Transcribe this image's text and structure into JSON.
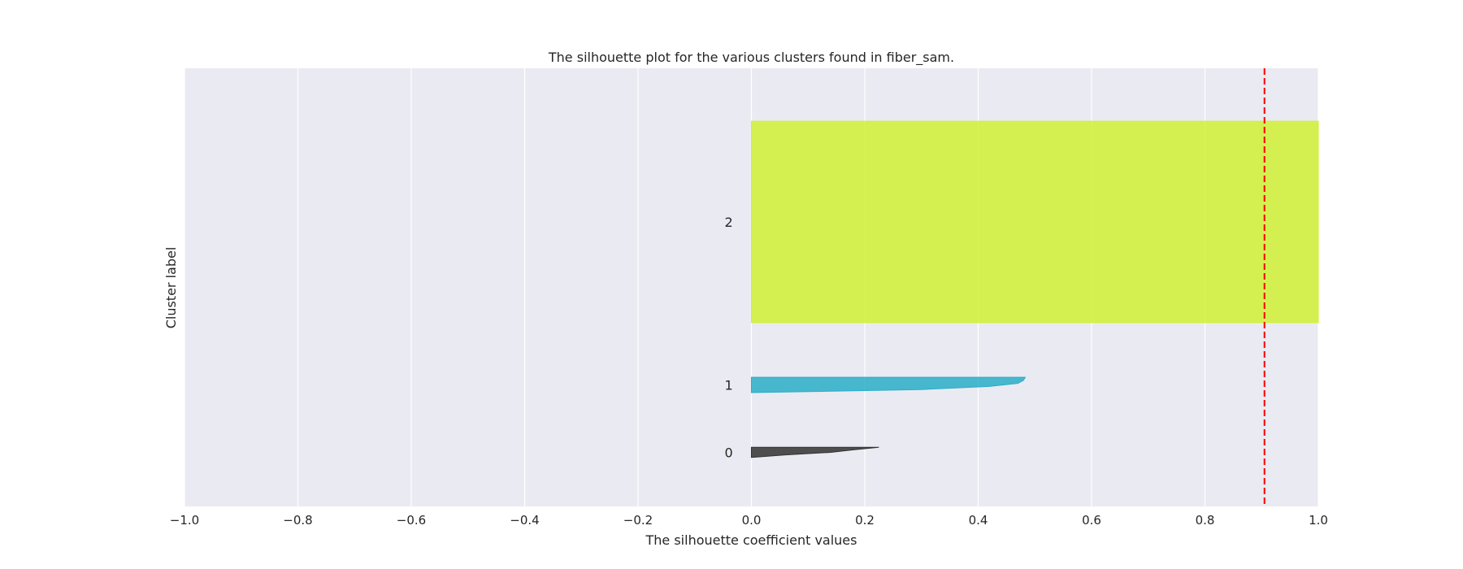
{
  "chart_data": {
    "type": "area",
    "title": "The silhouette plot for the various clusters found in fiber_sam.",
    "xlabel": "The silhouette coefficient values",
    "ylabel": "Cluster label",
    "xlim": [
      -1.0,
      1.0
    ],
    "ylim": [
      0,
      770
    ],
    "grid": true,
    "x_ticks": [
      "−1.0",
      "−0.8",
      "−0.6",
      "−0.4",
      "−0.2",
      "0.0",
      "0.2",
      "0.4",
      "0.6",
      "0.8",
      "1.0"
    ],
    "x_tick_values": [
      -1.0,
      -0.8,
      -0.6,
      -0.4,
      -0.2,
      0.0,
      0.2,
      0.4,
      0.6,
      0.8,
      1.0
    ],
    "clusters": [
      {
        "label": "0",
        "color": "#333333",
        "y_lower": 86,
        "y_upper": 104,
        "values_bottom_to_top": [
          0.0,
          0.06,
          0.14,
          0.18,
          0.225
        ]
      },
      {
        "label": "1",
        "color": "#2aaec8",
        "y_lower": 200,
        "y_upper": 227,
        "values_bottom_to_top": [
          0.0,
          0.3,
          0.42,
          0.47,
          0.48,
          0.483
        ]
      },
      {
        "label": "2",
        "color": "#cff134",
        "y_lower": 323,
        "y_upper": 677,
        "values_bottom_to_top": [
          1.0,
          1.0,
          1.0,
          1.0
        ]
      }
    ],
    "avg_silhouette": 0.905,
    "avg_line_color": "#ff0000"
  }
}
